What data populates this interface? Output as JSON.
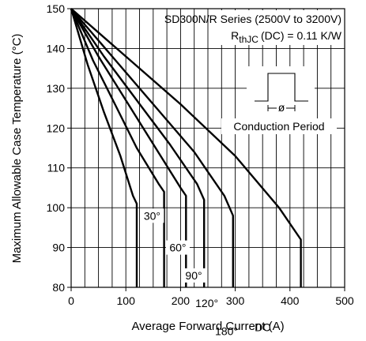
{
  "chart_data": {
    "type": "line",
    "title": "",
    "xlabel": "Average Forward Current (A)",
    "ylabel": "Maximum Allowable Case Temperature (°C)",
    "xlim": [
      0,
      500
    ],
    "ylim": [
      80,
      150
    ],
    "x_ticks": [
      "0",
      "100",
      "200",
      "300",
      "400",
      "500"
    ],
    "y_ticks": [
      "80",
      "90",
      "100",
      "110",
      "120",
      "130",
      "140",
      "150"
    ],
    "grid": true,
    "annotations": {
      "series_line": "SD300N/R Series (2500V to 3200V)",
      "rth_prefix": "R",
      "rth_sub": "thJC",
      "rth_suffix": "(DC) = 0.11 K/W",
      "inset_label": "Conduction Period",
      "inset_symbol": "ø"
    },
    "series": [
      {
        "name": "30°",
        "points": [
          [
            0,
            150
          ],
          [
            30,
            136
          ],
          [
            60,
            124
          ],
          [
            90,
            113
          ],
          [
            113,
            103
          ],
          [
            120,
            101
          ],
          [
            120,
            80
          ]
        ]
      },
      {
        "name": "60°",
        "points": [
          [
            0,
            150
          ],
          [
            40,
            137
          ],
          [
            80,
            126
          ],
          [
            120,
            115
          ],
          [
            160,
            106
          ],
          [
            170,
            104
          ],
          [
            170,
            80
          ]
        ]
      },
      {
        "name": "90°",
        "points": [
          [
            0,
            150
          ],
          [
            50,
            138
          ],
          [
            100,
            127
          ],
          [
            150,
            116
          ],
          [
            200,
            105
          ],
          [
            210,
            103
          ],
          [
            210,
            80
          ]
        ]
      },
      {
        "name": "120°",
        "points": [
          [
            0,
            150
          ],
          [
            60,
            138
          ],
          [
            120,
            127
          ],
          [
            180,
            116
          ],
          [
            230,
            106
          ],
          [
            243,
            102
          ],
          [
            243,
            80
          ]
        ]
      },
      {
        "name": "180°",
        "points": [
          [
            0,
            150
          ],
          [
            75,
            138
          ],
          [
            150,
            126
          ],
          [
            225,
            114
          ],
          [
            280,
            103
          ],
          [
            296,
            98
          ],
          [
            296,
            80
          ]
        ]
      },
      {
        "name": "DC",
        "points": [
          [
            0,
            150
          ],
          [
            100,
            138
          ],
          [
            200,
            126
          ],
          [
            300,
            113
          ],
          [
            380,
            100
          ],
          [
            420,
            92
          ],
          [
            420,
            80
          ]
        ]
      }
    ]
  }
}
